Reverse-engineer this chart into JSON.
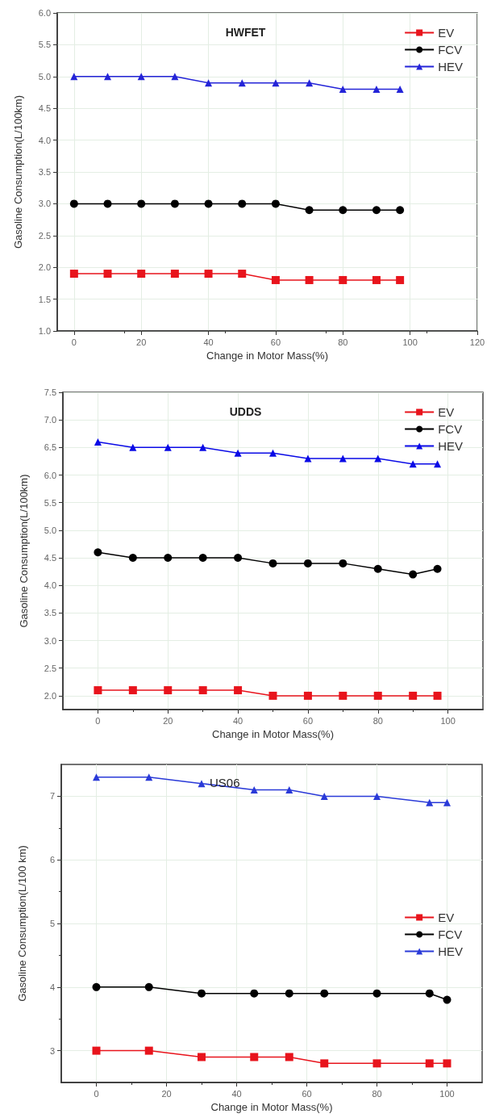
{
  "chart_data": [
    {
      "type": "line",
      "title": "HWFET",
      "xlabel": "Change in Motor Mass(%)",
      "ylabel": "Gasoline Consumption(L/100km)",
      "x": [
        0,
        10,
        20,
        30,
        40,
        50,
        60,
        70,
        80,
        90,
        97
      ],
      "xlim": [
        -5,
        120
      ],
      "xticks": [
        0,
        20,
        40,
        60,
        80,
        100,
        120
      ],
      "ylim": [
        1.0,
        6.0
      ],
      "yticks": [
        {
          "value": 1.0,
          "label": "1.0"
        },
        {
          "value": 1.5,
          "label": "1.5"
        },
        {
          "value": 2.0,
          "label": "2.0"
        },
        {
          "value": 2.5,
          "label": "2.5"
        },
        {
          "value": 3.0,
          "label": "3.0"
        },
        {
          "value": 3.5,
          "label": "3.5"
        },
        {
          "value": 4.0,
          "label": "4.0"
        },
        {
          "value": 4.5,
          "label": "4.5"
        },
        {
          "value": 5.0,
          "label": "5.0"
        },
        {
          "value": 5.5,
          "label": "5.5"
        },
        {
          "value": 6.0,
          "label": "6.0"
        }
      ],
      "grid": true,
      "legend": "top right",
      "series": [
        {
          "name": "EV",
          "color": "#e8141c",
          "marker": "square",
          "values": [
            1.9,
            1.9,
            1.9,
            1.9,
            1.9,
            1.9,
            1.8,
            1.8,
            1.8,
            1.8,
            1.8
          ]
        },
        {
          "name": "FCV",
          "color": "#000000",
          "marker": "circle",
          "values": [
            3.0,
            3.0,
            3.0,
            3.0,
            3.0,
            3.0,
            3.0,
            2.9,
            2.9,
            2.9,
            2.9
          ]
        },
        {
          "name": "HEV",
          "color": "#2424d8",
          "marker": "triangle",
          "values": [
            5.0,
            5.0,
            5.0,
            5.0,
            4.9,
            4.9,
            4.9,
            4.9,
            4.8,
            4.8,
            4.8
          ]
        }
      ]
    },
    {
      "type": "line",
      "title": "UDDS",
      "xlabel": "Change in Motor Mass(%)",
      "ylabel": "Gasoline Consumption(L/100km)",
      "x": [
        0,
        10,
        20,
        30,
        40,
        50,
        60,
        70,
        80,
        90,
        97
      ],
      "xlim": [
        -10,
        110
      ],
      "xticks": [
        0,
        20,
        40,
        60,
        80,
        100
      ],
      "ylim": [
        1.75,
        7.5
      ],
      "yticks": [
        {
          "value": 2.0,
          "label": "2.0"
        },
        {
          "value": 2.5,
          "label": "2.5"
        },
        {
          "value": 3.0,
          "label": "3.0"
        },
        {
          "value": 3.5,
          "label": "3.5"
        },
        {
          "value": 4.0,
          "label": "4.0"
        },
        {
          "value": 4.5,
          "label": "4.5"
        },
        {
          "value": 5.0,
          "label": "5.0"
        },
        {
          "value": 5.5,
          "label": "5.5"
        },
        {
          "value": 6.0,
          "label": "6.0"
        },
        {
          "value": 6.5,
          "label": "6.5"
        },
        {
          "value": 7.0,
          "label": "7.0"
        },
        {
          "value": 7.5,
          "label": "7.5"
        }
      ],
      "grid": true,
      "legend": "top right",
      "series": [
        {
          "name": "EV",
          "color": "#e8141c",
          "marker": "square",
          "values": [
            2.1,
            2.1,
            2.1,
            2.1,
            2.1,
            2.0,
            2.0,
            2.0,
            2.0,
            2.0,
            2.0
          ]
        },
        {
          "name": "FCV",
          "color": "#000000",
          "marker": "circle",
          "values": [
            4.6,
            4.5,
            4.5,
            4.5,
            4.5,
            4.4,
            4.4,
            4.4,
            4.3,
            4.2,
            4.3
          ]
        },
        {
          "name": "HEV",
          "color": "#0a0ae6",
          "marker": "triangle",
          "values": [
            6.6,
            6.5,
            6.5,
            6.5,
            6.4,
            6.4,
            6.3,
            6.3,
            6.3,
            6.2,
            6.2
          ]
        }
      ]
    },
    {
      "type": "line",
      "title": "US06",
      "xlabel": "Change in Motor Mass(%)",
      "ylabel": "Gasoline Consumption(L/100 km)",
      "x": [
        0,
        15,
        30,
        45,
        55,
        65,
        80,
        95,
        100
      ],
      "xlim": [
        -10,
        110
      ],
      "xticks": [
        0,
        20,
        40,
        60,
        80,
        100
      ],
      "ylim": [
        2.5,
        7.5
      ],
      "yticks": [
        3,
        4,
        5,
        6,
        7
      ],
      "grid": true,
      "legend": "right",
      "series": [
        {
          "name": "EV",
          "color": "#e8141c",
          "marker": "square",
          "values": [
            3.0,
            3.0,
            2.9,
            2.9,
            2.9,
            2.8,
            2.8,
            2.8,
            2.8
          ]
        },
        {
          "name": "FCV",
          "color": "#000000",
          "marker": "circle",
          "values": [
            4.0,
            4.0,
            3.9,
            3.9,
            3.9,
            3.9,
            3.9,
            3.9,
            3.8
          ]
        },
        {
          "name": "HEV",
          "color": "#2a3ad8",
          "marker": "triangle",
          "values": [
            7.3,
            7.3,
            7.2,
            7.1,
            7.1,
            7.0,
            7.0,
            6.9,
            6.9
          ]
        }
      ]
    }
  ]
}
